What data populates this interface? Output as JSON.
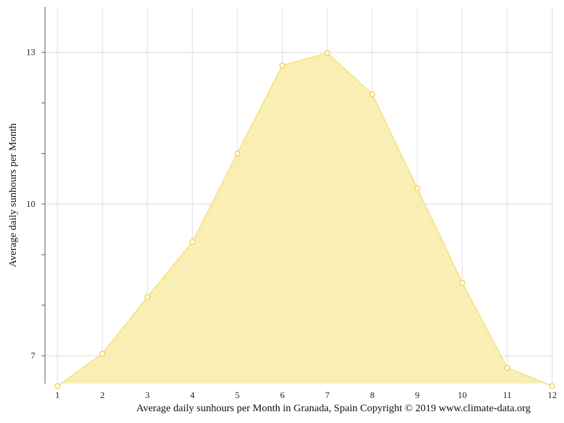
{
  "chart_data": {
    "type": "area",
    "x": [
      1,
      2,
      3,
      4,
      5,
      6,
      7,
      8,
      9,
      10,
      11,
      12
    ],
    "x_tick_labels": [
      "1",
      "2",
      "3",
      "4",
      "5",
      "6",
      "7",
      "8",
      "9",
      "10",
      "11",
      "12"
    ],
    "values": [
      6.4,
      7.04,
      8.16,
      9.25,
      11.0,
      12.74,
      12.99,
      12.17,
      10.31,
      8.44,
      6.76,
      6.4
    ],
    "ylabel": "Average daily sunhours per Month",
    "xlabel": "",
    "ylim": [
      6.45,
      13.9
    ],
    "y_ticks": [
      7,
      10,
      13
    ],
    "y_tick_labels": [
      "7",
      "10",
      "13"
    ],
    "grid": true,
    "colors": {
      "fill": "#f9eeb0",
      "line": "#f6e38c",
      "marker_stroke": "#f2d55a",
      "marker_fill": "#ffffff",
      "grid": "#dcdcdc",
      "axis": "#555555"
    }
  },
  "caption": "Average daily sunhours per Month in Granada, Spain Copyright © 2019 www.climate-data.org"
}
